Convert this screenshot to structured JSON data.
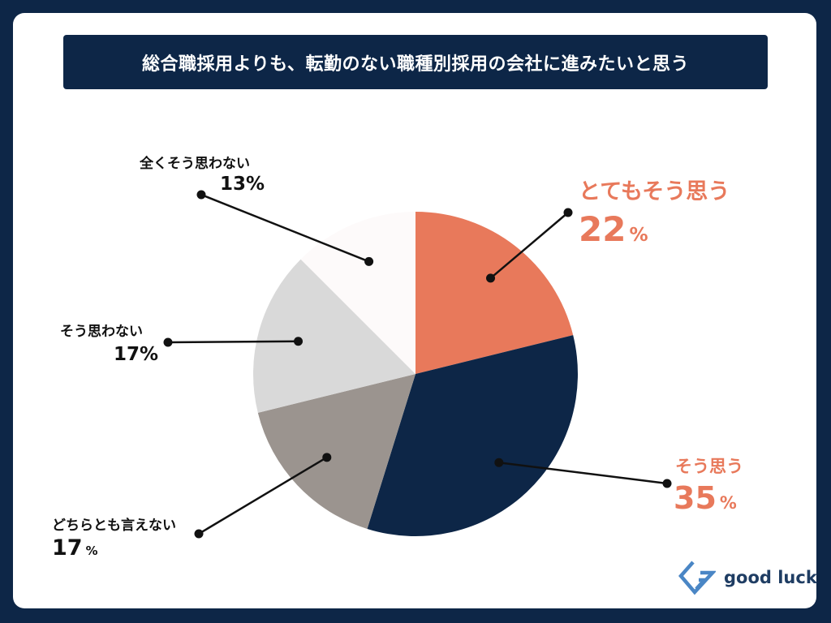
{
  "brand": {
    "name": "good luck",
    "logo_icon": "g-logo-icon",
    "navy": "#0d2647",
    "accent": "#e8795b"
  },
  "chart_data": {
    "type": "pie",
    "title": "総合職採用よりも、転勤のない職種別採用の会社に進みたいと思う",
    "slices": [
      {
        "label": "とてもそう思う",
        "value": 22,
        "value_text": "22",
        "unit": "%",
        "color": "#e8795b"
      },
      {
        "label": "そう思う",
        "value": 35,
        "value_text": "35",
        "unit": "%",
        "color": "#0d2647"
      },
      {
        "label": "どちらとも言えない",
        "value": 17,
        "value_text": "17",
        "unit": "%",
        "color": "#9b948f"
      },
      {
        "label": "そう思わない",
        "value": 17,
        "value_text": "17%",
        "unit": "",
        "color": "#d9d9d9"
      },
      {
        "label": "全くそう思わない",
        "value": 13,
        "value_text": "13%",
        "unit": "",
        "color": "#fdfafa"
      }
    ]
  }
}
